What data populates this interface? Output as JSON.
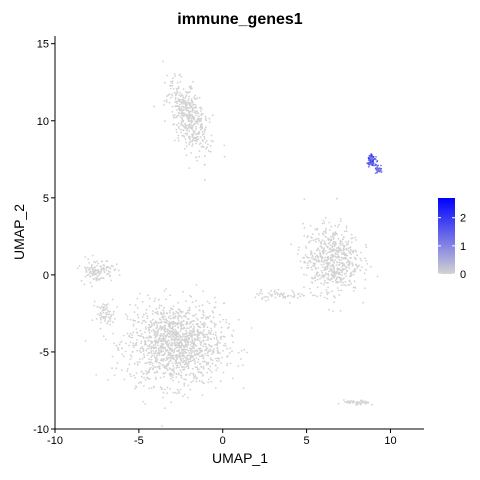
{
  "chart_data": {
    "type": "scatter",
    "title": "immune_genes1",
    "xlabel": "UMAP_1",
    "ylabel": "UMAP_2",
    "xlim": [
      -10,
      12
    ],
    "ylim": [
      -10,
      15.5
    ],
    "x_ticks": [
      -10,
      -5,
      0,
      5,
      10
    ],
    "y_ticks": [
      -10,
      -5,
      0,
      5,
      10,
      15
    ],
    "x_tick_labels": [
      "-10",
      "-5",
      "0",
      "5",
      "10"
    ],
    "y_tick_labels": [
      "-10",
      "-5",
      "0",
      "5",
      "10",
      "15"
    ],
    "grid": false,
    "legend": {
      "placement": "right",
      "title": "",
      "low_color": "#d3d3d3",
      "high_color": "#0000ff",
      "range": [
        0,
        2.7
      ],
      "ticks": [
        0,
        1,
        2
      ],
      "tick_labels": [
        "0",
        "1",
        "2"
      ]
    },
    "point_color": "#d3d3d3",
    "clusters": [
      {
        "center": [
          -2.0,
          10.2
        ],
        "spread": [
          0.9,
          2.2
        ],
        "count": 450,
        "expression": 0,
        "angle": 0.35
      },
      {
        "center": [
          -2.8,
          -4.5
        ],
        "spread": [
          2.6,
          2.4
        ],
        "count": 1400,
        "expression": 0,
        "angle": 0
      },
      {
        "center": [
          -7.5,
          0.3
        ],
        "spread": [
          0.9,
          0.7
        ],
        "count": 120,
        "expression": 0,
        "angle": 0
      },
      {
        "center": [
          -7.0,
          -2.5
        ],
        "spread": [
          0.5,
          0.6
        ],
        "count": 60,
        "expression": 0,
        "angle": 0
      },
      {
        "center": [
          6.5,
          1.0
        ],
        "spread": [
          1.5,
          2.0
        ],
        "count": 600,
        "expression": 0,
        "angle": 0
      },
      {
        "center": [
          3.5,
          -1.3
        ],
        "spread": [
          1.5,
          0.3
        ],
        "count": 60,
        "expression": 0,
        "angle": 0
      },
      {
        "center": [
          8.0,
          -8.3
        ],
        "spread": [
          0.7,
          0.15
        ],
        "count": 50,
        "expression": 0,
        "angle": 0
      },
      {
        "center": [
          8.9,
          7.4
        ],
        "spread": [
          0.25,
          0.3
        ],
        "count": 70,
        "expression": 1.8,
        "angle": 0
      },
      {
        "center": [
          9.3,
          6.8
        ],
        "spread": [
          0.2,
          0.2
        ],
        "count": 35,
        "expression": 1.5,
        "angle": 0
      }
    ]
  }
}
